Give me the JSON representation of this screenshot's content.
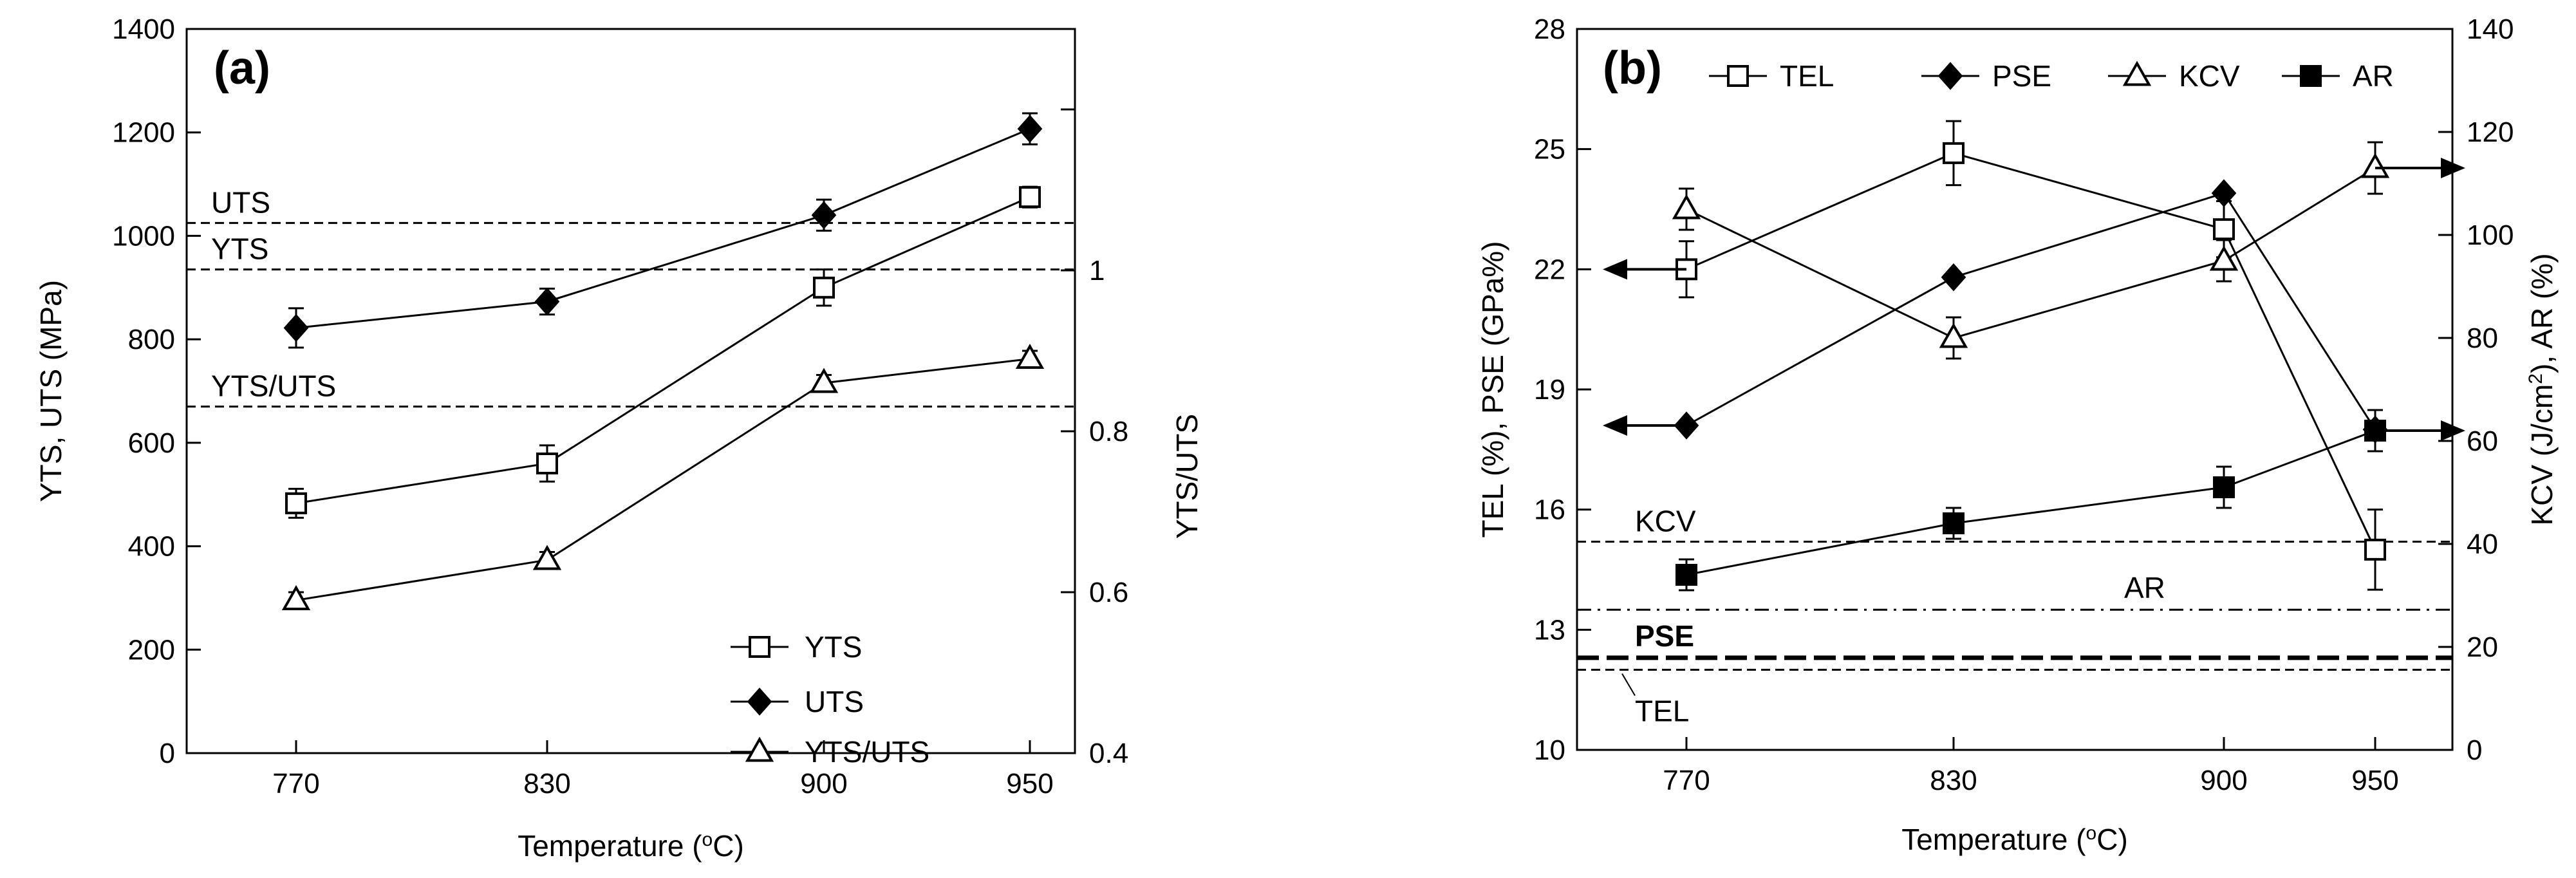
{
  "chart_data": [
    {
      "type": "line",
      "panel_label": "(a)",
      "categories": [
        "770",
        "830",
        "900",
        "950"
      ],
      "xlabel": "Temperature (°C)",
      "ylabel": "YTS, UTS (MPa)",
      "y2label": "YTS/UTS",
      "ylim": [
        0,
        1400
      ],
      "yticks": [
        "0",
        "200",
        "400",
        "600",
        "800",
        "1000",
        "1200",
        "1400"
      ],
      "y2lim": [
        0.4,
        1.3
      ],
      "y2ticks": [
        "0.4",
        "0.6",
        "0.8",
        "1"
      ],
      "legend_position": "bottom-right",
      "series": [
        {
          "name": "YTS",
          "axis": "left",
          "marker": "square-open",
          "values": [
            483,
            560,
            900,
            1075
          ],
          "errors": [
            28,
            35,
            35,
            20
          ]
        },
        {
          "name": "UTS",
          "axis": "left",
          "marker": "diamond-filled",
          "values": [
            822,
            873,
            1040,
            1207
          ],
          "errors": [
            38,
            25,
            30,
            30
          ]
        },
        {
          "name": "YTS/UTS",
          "axis": "right",
          "marker": "triangle-open",
          "values": [
            0.59,
            0.64,
            0.86,
            0.89
          ],
          "errors": [
            0.01,
            0.01,
            0.01,
            0.01
          ]
        }
      ],
      "reference_lines": [
        {
          "label": "UTS",
          "axis": "left",
          "value": 1025,
          "style": "dashed"
        },
        {
          "label": "YTS",
          "axis": "left",
          "value": 935,
          "style": "dashed"
        },
        {
          "label": "YTS/UTS",
          "axis": "left",
          "value": 670,
          "style": "dashed"
        }
      ]
    },
    {
      "type": "line",
      "panel_label": "(b)",
      "categories": [
        "770",
        "830",
        "900",
        "950"
      ],
      "xlabel": "Temperature (°C)",
      "ylabel": "TEL (%), PSE (GPa%)",
      "y2label": "KCV (J/cm², AR (%)",
      "ylim": [
        10,
        28
      ],
      "yticks": [
        "10",
        "13",
        "16",
        "19",
        "22",
        "25",
        "28"
      ],
      "y2lim": [
        0,
        140
      ],
      "y2ticks": [
        "0",
        "20",
        "40",
        "60",
        "80",
        "100",
        "120",
        "140"
      ],
      "legend_position": "top",
      "series": [
        {
          "name": "TEL",
          "axis": "left",
          "marker": "square-open",
          "values": [
            22.0,
            24.9,
            23.0,
            15.0
          ],
          "errors": [
            0.7,
            0.8,
            0.7,
            1.0
          ]
        },
        {
          "name": "PSE",
          "axis": "left",
          "marker": "diamond-filled",
          "values": [
            18.1,
            21.8,
            23.9,
            18.0
          ],
          "errors": [
            0,
            0,
            0,
            0
          ]
        },
        {
          "name": "KCV",
          "axis": "right",
          "marker": "triangle-open",
          "values": [
            105,
            80,
            95,
            113
          ],
          "errors": [
            4,
            4,
            4,
            5
          ]
        },
        {
          "name": "AR",
          "axis": "right",
          "marker": "square-filled",
          "values": [
            34,
            44,
            51,
            62
          ],
          "errors": [
            3,
            3,
            4,
            4
          ]
        }
      ],
      "reference_lines": [
        {
          "label": "KCV",
          "axis": "left",
          "value": 15.2,
          "style": "dashed"
        },
        {
          "label": "AR",
          "axis": "left",
          "value": 13.5,
          "style": "dashdot"
        },
        {
          "label": "PSE",
          "axis": "left",
          "value": 12.3,
          "style": "dashed-bold"
        },
        {
          "label": "TEL",
          "axis": "left",
          "value": 12.0,
          "style": "dashed"
        }
      ],
      "arrows": [
        {
          "series": "TEL",
          "direction": "left",
          "value": 22.0
        },
        {
          "series": "PSE",
          "direction": "left",
          "value": 18.1
        },
        {
          "series": "KCV",
          "direction": "right",
          "value": 113
        },
        {
          "series": "AR",
          "direction": "right",
          "value": 62
        }
      ]
    }
  ]
}
